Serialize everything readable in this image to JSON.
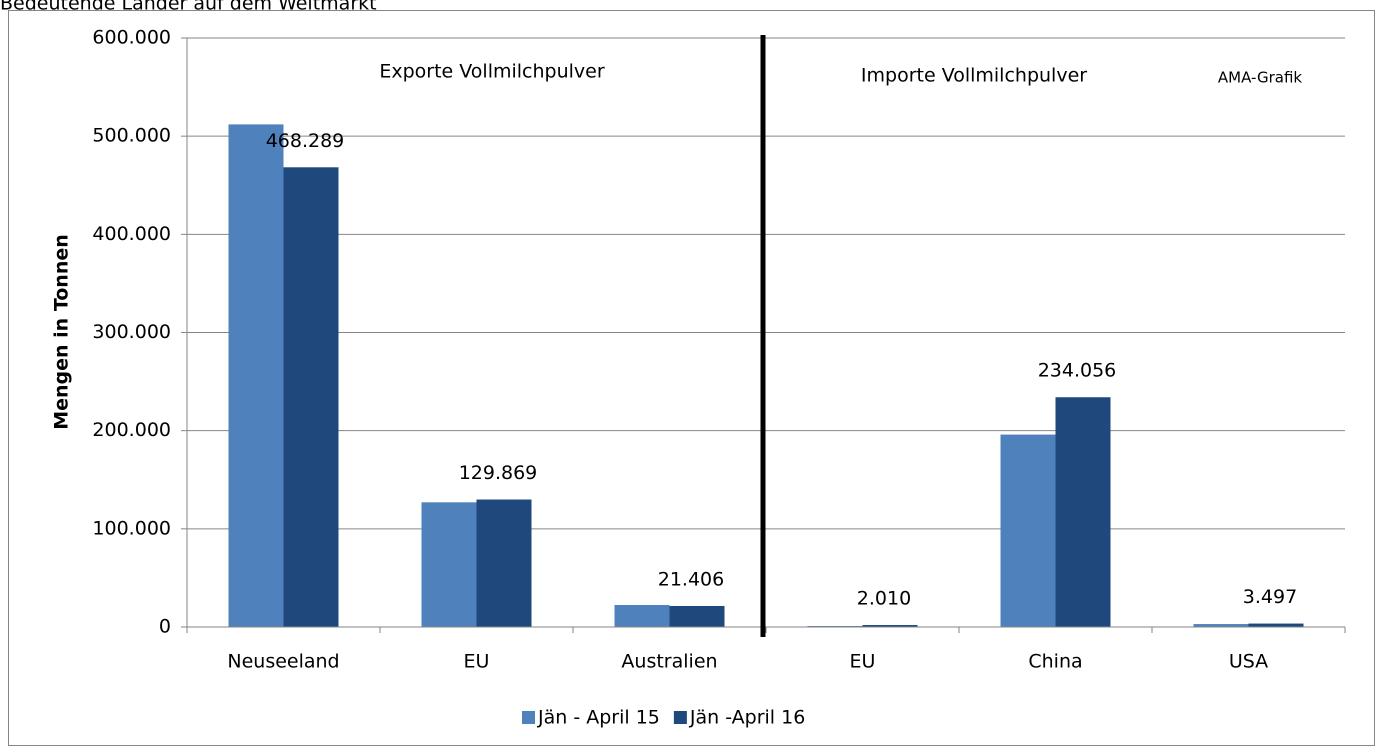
{
  "chart_data": {
    "type": "bar",
    "title": "Bedeutende Länder auf dem Weltmarkt",
    "y_label": "Mengen in Tonnen",
    "annotations": [
      "Exporte Vollmilchpulver",
      "Importe Vollmilchpulver",
      "AMA-Grafik"
    ],
    "categories": [
      "Neuseeland",
      "EU",
      "Australien",
      "EU",
      "China",
      "USA"
    ],
    "series": [
      {
        "name": "Jän - April 15",
        "color": "#4f81bd",
        "values": [
          512000,
          127000,
          22400,
          1000,
          196000,
          3000
        ]
      },
      {
        "name": "Jän -April 16",
        "color": "#1f497d",
        "values": [
          468289,
          129869,
          21406,
          2010,
          234056,
          3497
        ],
        "value_labels": [
          "468.289",
          "129.869",
          "21.406",
          "2.010",
          "234.056",
          "3.497"
        ]
      }
    ],
    "ylim": [
      0,
      600000
    ],
    "yticks": [
      0,
      {
        "value": 100000,
        "label": "100.000"
      },
      {
        "value": 200000,
        "label": "200.000"
      },
      {
        "value": 300000,
        "label": "300.000"
      },
      {
        "value": 400000,
        "label": "400.000"
      },
      {
        "value": 500000,
        "label": "500.000"
      },
      {
        "value": 600000,
        "label": "600.000"
      }
    ],
    "grid": true,
    "legend": "bottom"
  }
}
